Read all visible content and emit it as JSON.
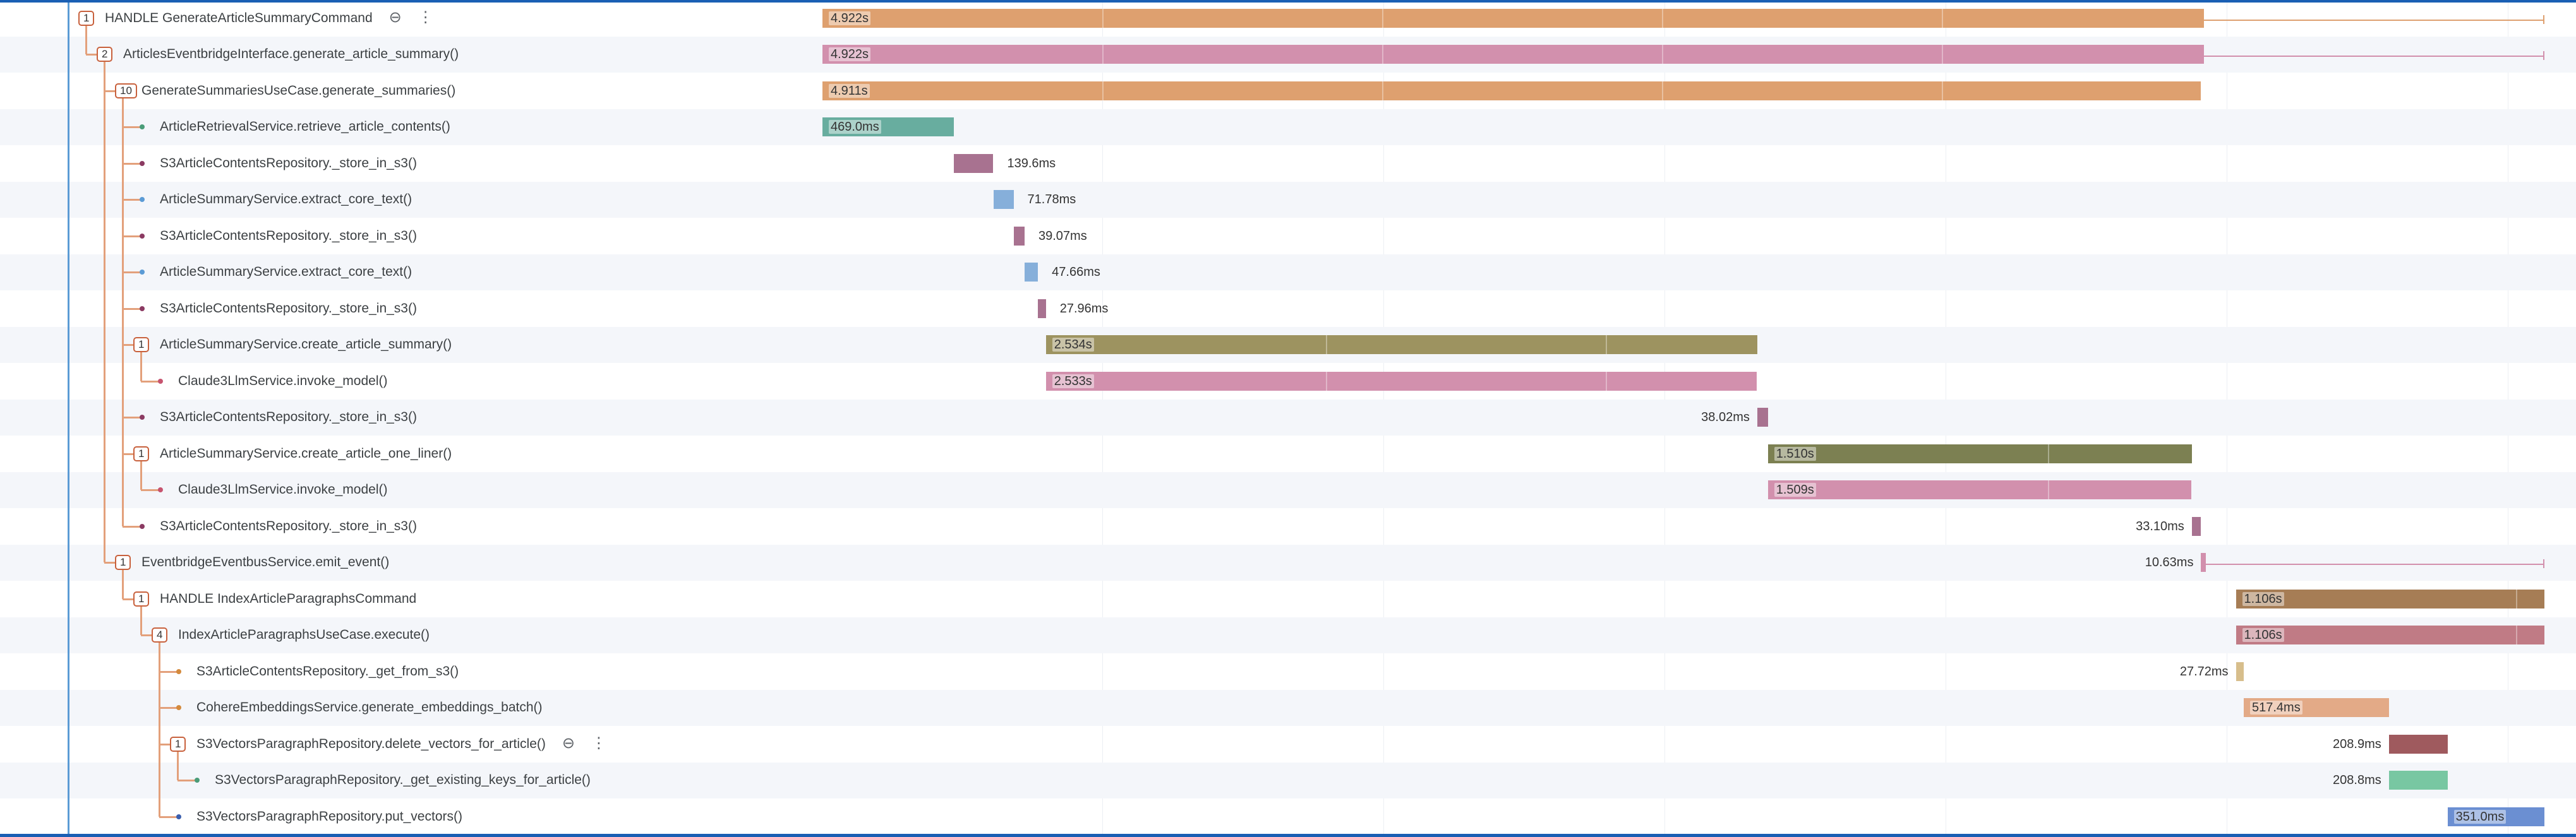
{
  "colors": {
    "orange": "#dea06f",
    "pink": "#d290ad",
    "teal": "#68ad9f",
    "mauve": "#a87290",
    "blue": "#86afda",
    "olive": "#9d9360",
    "olive_dark": "#7c8052",
    "brown": "#a67d55",
    "rose": "#c07b85",
    "tan": "#d7be8c",
    "peach": "#e3aa87",
    "maroon": "#9f5a5e",
    "green": "#78c7a2",
    "royal": "#6b8fd2",
    "connector": "#e3a07b"
  },
  "icons": {
    "zoom": "zoom-out-icon",
    "more": "more-vertical-icon"
  },
  "rows": [
    {
      "id": "r0",
      "depth": 0,
      "badge": "1",
      "label": "HANDLE GenerateArticleSummaryCommand",
      "bar_text": "4.922s",
      "bar_text_inside": true,
      "color": "orange",
      "show_icons": true,
      "start_s": 0.0,
      "duration_s": 4.922
    },
    {
      "id": "r1",
      "depth": 1,
      "badge": "2",
      "label": "ArticlesEventbridgeInterface.generate_article_summary()",
      "bar_text": "4.922s",
      "bar_text_inside": true,
      "color": "pink",
      "start_s": 0.0,
      "duration_s": 4.922
    },
    {
      "id": "r2",
      "depth": 2,
      "badge": "10",
      "label": "GenerateSummariesUseCase.generate_summaries()",
      "bar_text": "4.911s",
      "bar_text_inside": true,
      "color": "orange",
      "start_s": 0.0,
      "duration_s": 4.911
    },
    {
      "id": "r3",
      "depth": 3,
      "label": "ArticleRetrievalService.retrieve_article_contents()",
      "bar_text": "469.0ms",
      "bar_text_inside": true,
      "color": "teal",
      "dot": "#4a9c78",
      "start_s": 0.0,
      "duration_s": 0.469
    },
    {
      "id": "r4",
      "depth": 3,
      "label": "S3ArticleContentsRepository._store_in_s3()",
      "bar_text": "139.6ms",
      "bar_text_inside": false,
      "color": "mauve",
      "dot": "#8b3a62",
      "start_s": 0.469,
      "duration_s": 0.1396
    },
    {
      "id": "r5",
      "depth": 3,
      "label": "ArticleSummaryService.extract_core_text()",
      "bar_text": "71.78ms",
      "bar_text_inside": false,
      "color": "blue",
      "dot": "#5b9bd5",
      "start_s": 0.609,
      "duration_s": 0.07178
    },
    {
      "id": "r6",
      "depth": 3,
      "label": "S3ArticleContentsRepository._store_in_s3()",
      "bar_text": "39.07ms",
      "bar_text_inside": false,
      "color": "mauve",
      "dot": "#8b3a62",
      "start_s": 0.681,
      "duration_s": 0.03907
    },
    {
      "id": "r7",
      "depth": 3,
      "label": "ArticleSummaryService.extract_core_text()",
      "bar_text": "47.66ms",
      "bar_text_inside": false,
      "color": "blue",
      "dot": "#5b9bd5",
      "start_s": 0.72,
      "duration_s": 0.04766
    },
    {
      "id": "r8",
      "depth": 3,
      "label": "S3ArticleContentsRepository._store_in_s3()",
      "bar_text": "27.96ms",
      "bar_text_inside": false,
      "color": "mauve",
      "dot": "#8b3a62",
      "start_s": 0.768,
      "duration_s": 0.02796
    },
    {
      "id": "r9",
      "depth": 3,
      "badge": "1",
      "label": "ArticleSummaryService.create_article_summary()",
      "bar_text": "2.534s",
      "bar_text_inside": true,
      "color": "olive",
      "start_s": 0.796,
      "duration_s": 2.534
    },
    {
      "id": "r10",
      "depth": 4,
      "label": "Claude3LlmService.invoke_model()",
      "bar_text": "2.533s",
      "bar_text_inside": true,
      "color": "pink",
      "dot": "#c7546f",
      "start_s": 0.796,
      "duration_s": 2.533
    },
    {
      "id": "r11",
      "depth": 3,
      "label": "S3ArticleContentsRepository._store_in_s3()",
      "bar_text": "38.02ms",
      "bar_text_inside": false,
      "text_left": true,
      "color": "mauve",
      "dot": "#8b3a62",
      "start_s": 3.33,
      "duration_s": 0.03802
    },
    {
      "id": "r12",
      "depth": 3,
      "badge": "1",
      "label": "ArticleSummaryService.create_article_one_liner()",
      "bar_text": "1.510s",
      "bar_text_inside": true,
      "color": "olive_dark",
      "start_s": 3.368,
      "duration_s": 1.51
    },
    {
      "id": "r13",
      "depth": 4,
      "label": "Claude3LlmService.invoke_model()",
      "bar_text": "1.509s",
      "bar_text_inside": true,
      "color": "pink",
      "dot": "#c7546f",
      "start_s": 3.368,
      "duration_s": 1.509
    },
    {
      "id": "r14",
      "depth": 3,
      "label": "S3ArticleContentsRepository._store_in_s3()",
      "bar_text": "33.10ms",
      "bar_text_inside": false,
      "text_left": true,
      "color": "mauve",
      "dot": "#8b3a62",
      "start_s": 4.878,
      "duration_s": 0.0331
    },
    {
      "id": "r15",
      "depth": 2,
      "badge": "1",
      "label": "EventbridgeEventbusService.emit_event()",
      "bar_text": "10.63ms",
      "bar_text_inside": false,
      "text_left": true,
      "color": "pink",
      "start_s": 4.911,
      "duration_s": 0.01063
    },
    {
      "id": "r16",
      "depth": 3,
      "badge": "1",
      "label": "HANDLE IndexArticleParagraphsCommand",
      "bar_text": "1.106s",
      "bar_text_inside": true,
      "color": "brown",
      "start_s": 5.035,
      "duration_s": 1.106
    },
    {
      "id": "r17",
      "depth": 4,
      "badge": "4",
      "label": "IndexArticleParagraphsUseCase.execute()",
      "bar_text": "1.106s",
      "bar_text_inside": true,
      "color": "rose",
      "start_s": 5.035,
      "duration_s": 1.106
    },
    {
      "id": "r18",
      "depth": 5,
      "label": "S3ArticleContentsRepository._get_from_s3()",
      "bar_text": "27.72ms",
      "bar_text_inside": false,
      "text_left": true,
      "color": "tan",
      "dot": "#d48a3c",
      "start_s": 5.035,
      "duration_s": 0.02772
    },
    {
      "id": "r19",
      "depth": 5,
      "label": "CohereEmbeddingsService.generate_embeddings_batch()",
      "bar_text": "517.4ms",
      "bar_text_inside": true,
      "color": "peach",
      "dot": "#d48a3c",
      "start_s": 5.063,
      "duration_s": 0.5174
    },
    {
      "id": "r20",
      "depth": 5,
      "badge": "1",
      "label": "S3VectorsParagraphRepository.delete_vectors_for_article()",
      "bar_text": "208.9ms",
      "bar_text_inside": false,
      "text_left": true,
      "color": "maroon",
      "show_icons": true,
      "start_s": 5.58,
      "duration_s": 0.2089
    },
    {
      "id": "r21",
      "depth": 6,
      "label": "S3VectorsParagraphRepository._get_existing_keys_for_article()",
      "bar_text": "208.8ms",
      "bar_text_inside": false,
      "text_left": true,
      "color": "green",
      "dot": "#4a9c78",
      "start_s": 5.58,
      "duration_s": 0.2088
    },
    {
      "id": "r22",
      "depth": 5,
      "label": "S3VectorsParagraphRepository.put_vectors()",
      "bar_text": "351.0ms",
      "bar_text_inside": true,
      "color": "royal",
      "dot": "#3b5fae",
      "start_s": 5.789,
      "duration_s": 0.351
    }
  ]
}
